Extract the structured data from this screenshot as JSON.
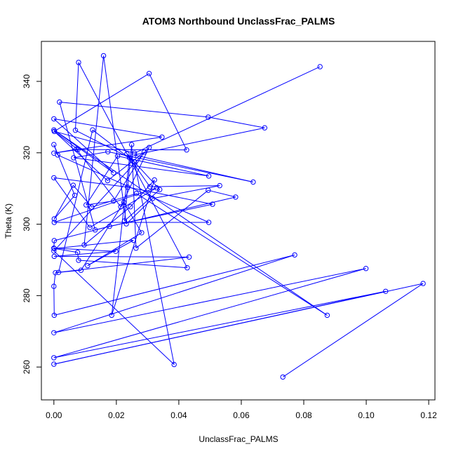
{
  "chart_data": {
    "type": "line",
    "title": "ATOM3 Northbound UnclassFrac_PALMS",
    "xlabel": "UnclassFrac_PALMS",
    "ylabel": "Theta (K)",
    "xlim": [
      -0.004,
      0.122
    ],
    "ylim": [
      250.8,
      351.2
    ],
    "x_ticks": [
      0.0,
      0.02,
      0.04,
      0.06,
      0.08,
      0.1,
      0.12
    ],
    "x_tick_labels": [
      "0.00",
      "0.02",
      "0.04",
      "0.06",
      "0.08",
      "0.10",
      "0.12"
    ],
    "y_ticks": [
      260,
      280,
      300,
      320,
      340
    ],
    "y_tick_labels": [
      "260",
      "280",
      "300",
      "320",
      "340"
    ],
    "grid": false,
    "line_color": "#0000ff",
    "marker": "open-circle",
    "series": [
      {
        "x": [
          0.0733,
          0.1182,
          0.0,
          0.1062,
          0.0,
          0.0999,
          0.0,
          0.0771,
          0.0001,
          0.0,
          0.0005,
          0.0433,
          0.0001,
          0.0198,
          0.0,
          0.0001,
          0.0178,
          0.0508,
          0.0236,
          0.0,
          0.0115,
          0.0329,
          0.0001,
          0.0496,
          0.0012,
          0.0,
          0.0067,
          0.0001,
          0.0062,
          0.0121,
          0.0264,
          0.0875,
          0.0,
          0.0191,
          0.0,
          0.0346,
          0.0,
          0.0072,
          0.0214,
          0.0305,
          0.0,
          0.0385,
          0.0258,
          0.0124,
          0.0015,
          0.0087,
          0.0224,
          0.0281,
          0.0108,
          0.0255,
          0.0001,
          0.0076,
          0.0079,
          0.0427,
          0.0079,
          0.0069,
          0.0242,
          0.0185,
          0.0322,
          0.0245,
          0.0097,
          0.0159,
          0.0232,
          0.0316,
          0.0531,
          0.0307,
          0.0234,
          0.0339,
          0.0226,
          0.0249,
          0.0263,
          0.0494,
          0.0582,
          0.0132,
          0.0018,
          0.0494,
          0.0675,
          0.0257,
          0.0638,
          0.0173,
          0.0063,
          0.0496,
          0.0204,
          0.0103,
          0.0191,
          0.0289,
          0.0172,
          0.0001,
          0.0305,
          0.0425,
          0.0077,
          0.0002,
          0.0258,
          0.0852
        ],
        "y": [
          257.2,
          283.4,
          260.8,
          281.2,
          262.6,
          287.6,
          269.6,
          291.4,
          274.5,
          282.6,
          286.4,
          290.8,
          291.0,
          292.4,
          293.3,
          295.4,
          299.4,
          305.6,
          310.4,
          313.0,
          299.1,
          310.2,
          300.5,
          300.5,
          319.4,
          322.3,
          308.1,
          301.5,
          310.9,
          304.8,
          308.6,
          274.5,
          326.4,
          314.4,
          329.5,
          324.4,
          319.9,
          321.0,
          304.9,
          321.5,
          292.5,
          260.7,
          317.4,
          326.4,
          286.5,
          287.1,
          306.1,
          297.6,
          288.4,
          295.5,
          293.2,
          292.1,
          289.9,
          287.8,
          345.3,
          326.3,
          318.6,
          274.5,
          312.4,
          304.9,
          294.2,
          347.2,
          300.1,
          307.2,
          310.8,
          310.5,
          319.7,
          309.7,
          300.9,
          322.3,
          293.3,
          309.5,
          307.6,
          298.4,
          334.2,
          330.0,
          327.0,
          319.4,
          311.8,
          320.3,
          318.6,
          313.5,
          319.1,
          305.4,
          306.5,
          320.2,
          312.2,
          326.0,
          342.2,
          320.8,
          320.9,
          326.0,
          319.9,
          344.1
        ]
      }
    ]
  }
}
